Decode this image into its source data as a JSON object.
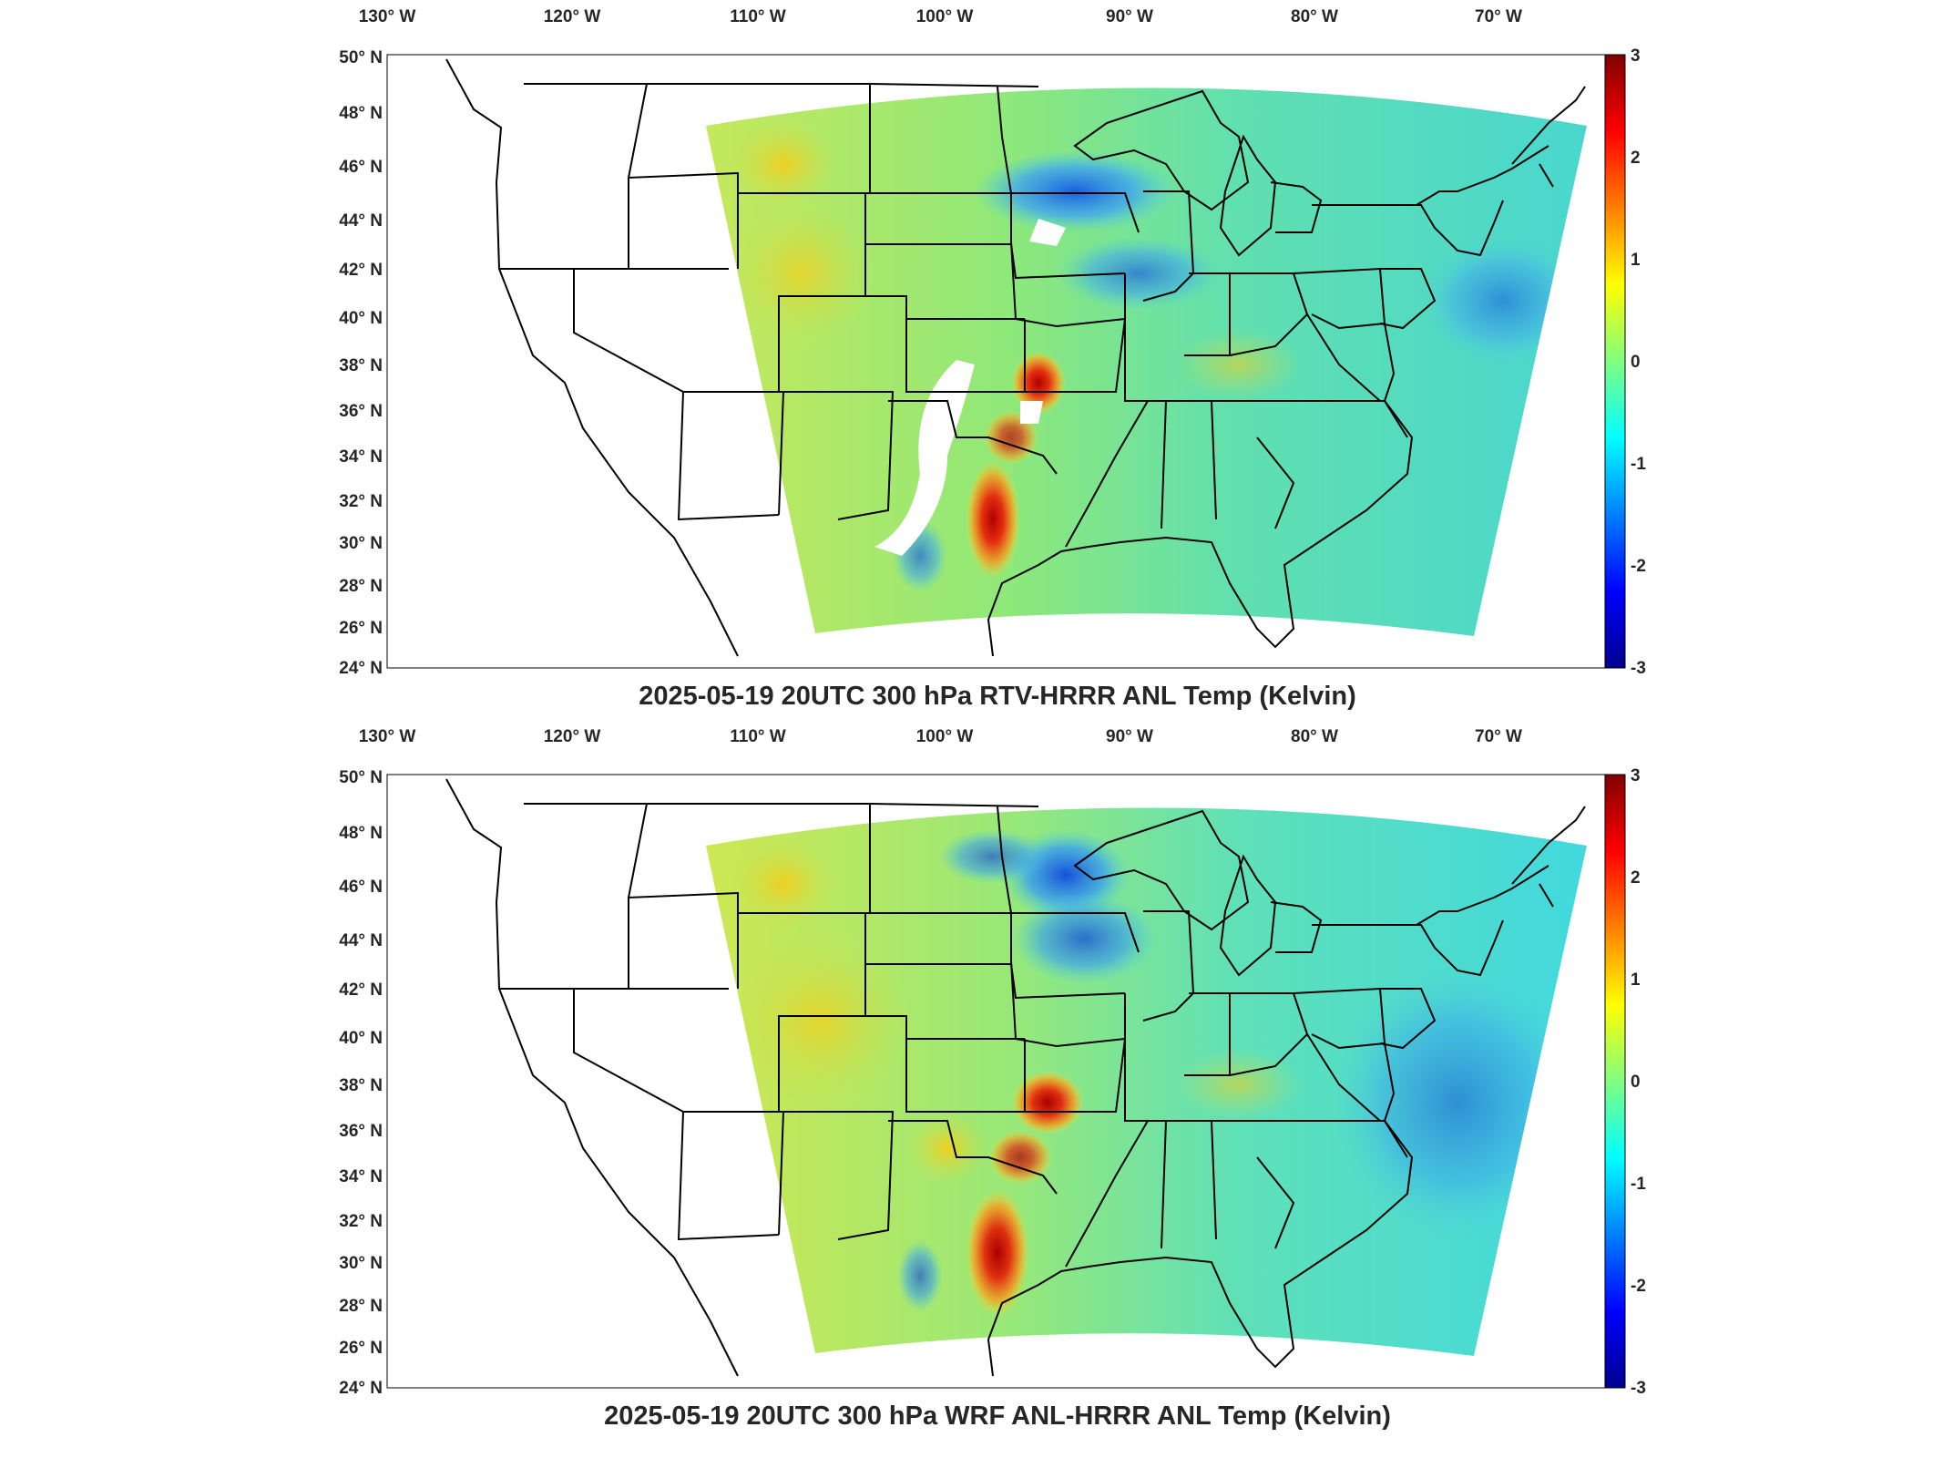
{
  "panels": [
    {
      "title": "2025-05-19 20UTC 300 hPa RTV-HRRR ANL Temp (Kelvin)",
      "lon_labels": [
        "130° W",
        "120° W",
        "110° W",
        "100° W",
        "90° W",
        "80° W",
        "70° W"
      ],
      "lat_labels": [
        "50° N",
        "48° N",
        "46° N",
        "44° N",
        "42° N",
        "40° N",
        "38° N",
        "36° N",
        "34° N",
        "32° N",
        "30° N",
        "28° N",
        "26° N",
        "24° N"
      ],
      "colorbar_ticks": [
        "3",
        "2",
        "1",
        "0",
        "-1",
        "-2",
        "-3"
      ],
      "colorbar_range": [
        -3,
        3
      ],
      "colormap": "jet",
      "missing_data_white_patches": true
    },
    {
      "title": "2025-05-19 20UTC 300 hPa WRF ANL-HRRR ANL Temp (Kelvin)",
      "lon_labels": [
        "130° W",
        "120° W",
        "110° W",
        "100° W",
        "90° W",
        "80° W",
        "70° W"
      ],
      "lat_labels": [
        "50° N",
        "48° N",
        "46° N",
        "44° N",
        "42° N",
        "40° N",
        "38° N",
        "36° N",
        "34° N",
        "32° N",
        "30° N",
        "28° N",
        "26° N",
        "24° N"
      ],
      "colorbar_ticks": [
        "3",
        "2",
        "1",
        "0",
        "-1",
        "-2",
        "-3"
      ],
      "colorbar_range": [
        -3,
        3
      ],
      "colormap": "jet",
      "missing_data_white_patches": false
    }
  ],
  "colors": {
    "field_base": "#5fe0b0",
    "warm_anomaly": "#d01010",
    "cold_anomaly": "#1a6ee8",
    "border": "#000000"
  }
}
